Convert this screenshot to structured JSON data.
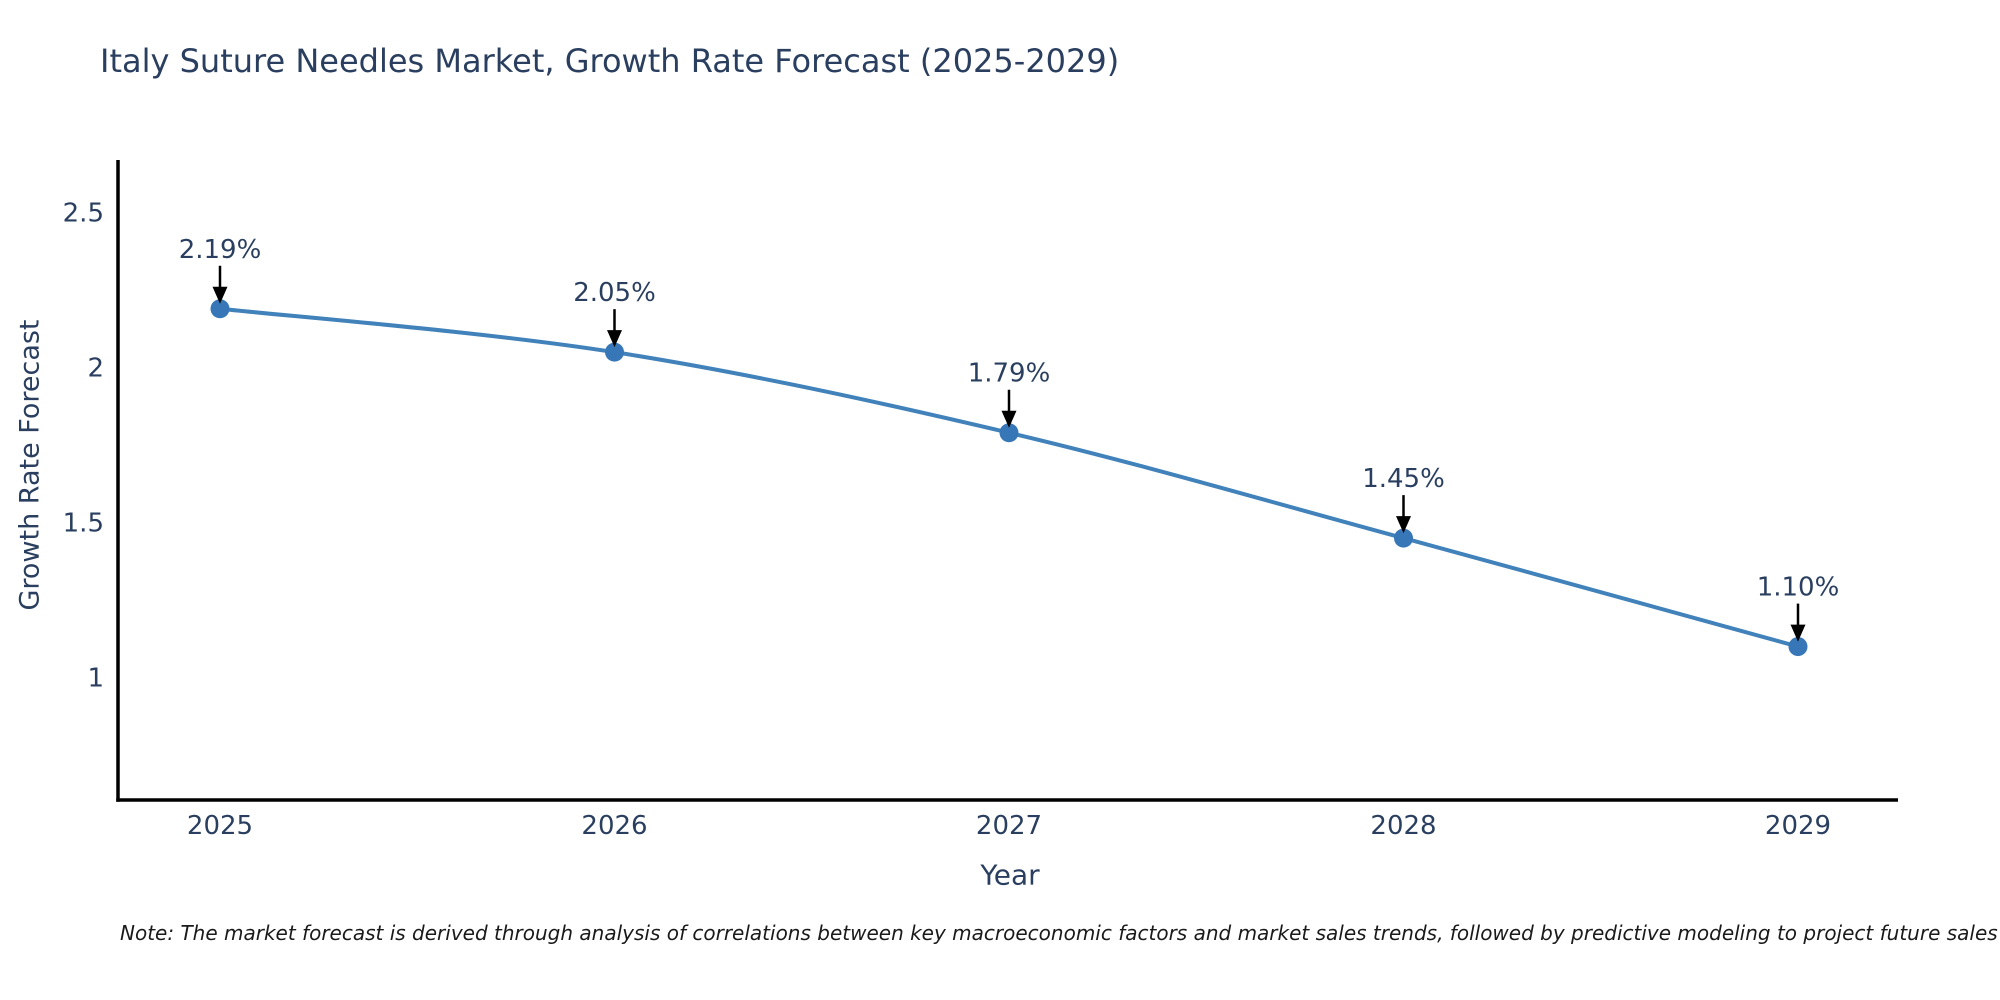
{
  "header": {
    "title": "Italy Suture Needles Market, Growth Rate Forecast (2025-2029)"
  },
  "footer": {
    "note": "Note: The market forecast is derived through analysis of correlations between key macroeconomic factors and market sales trends, followed by predictive modeling to project future sales"
  },
  "chart_data": {
    "type": "line",
    "title": "Italy Suture Needles Market, Growth Rate Forecast (2025-2029)",
    "xlabel": "Year",
    "ylabel": "Growth Rate Forecast",
    "categories": [
      "2025",
      "2026",
      "2027",
      "2028",
      "2029"
    ],
    "series": [
      {
        "name": "Growth Rate Forecast",
        "values": [
          2.19,
          2.05,
          1.79,
          1.45,
          1.1
        ],
        "point_labels": [
          "2.19%",
          "2.05%",
          "1.79%",
          "1.45%",
          "1.10%"
        ]
      }
    ],
    "ytick_labels": [
      "2.5",
      "2",
      "1.5",
      "1"
    ],
    "ytick_values": [
      2.5,
      2.0,
      1.5,
      1.0
    ],
    "ylim": [
      0.605,
      2.67
    ],
    "grid": false,
    "legend": false,
    "annotations": "value labels with black arrows pointing down to each marker",
    "colors": {
      "line": "#4282ba",
      "marker": "#3877b7",
      "axis": "#000000",
      "tick_text": "#2a3f5f",
      "annotation_text": "#2a3f5f",
      "arrow": "#000000",
      "title_text": "#2a3f5f",
      "note_text": "#1a1a1a",
      "background": "#ffffff"
    }
  }
}
